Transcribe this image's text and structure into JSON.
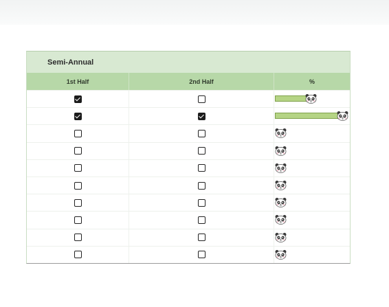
{
  "tracker": {
    "title": "Semi-Annual",
    "headers": {
      "first": "1st Half",
      "second": "2nd Half",
      "percent": "%"
    },
    "accent": "#b7d8a8",
    "rows": [
      {
        "first": true,
        "second": false,
        "progress": 0.5
      },
      {
        "first": true,
        "second": true,
        "progress": 1.0
      },
      {
        "first": false,
        "second": false,
        "progress": 0
      },
      {
        "first": false,
        "second": false,
        "progress": 0
      },
      {
        "first": false,
        "second": false,
        "progress": 0
      },
      {
        "first": false,
        "second": false,
        "progress": 0
      },
      {
        "first": false,
        "second": false,
        "progress": 0
      },
      {
        "first": false,
        "second": false,
        "progress": 0
      },
      {
        "first": false,
        "second": false,
        "progress": 0
      },
      {
        "first": false,
        "second": false,
        "progress": 0
      }
    ],
    "progress_icon": "panda-face-icon"
  }
}
